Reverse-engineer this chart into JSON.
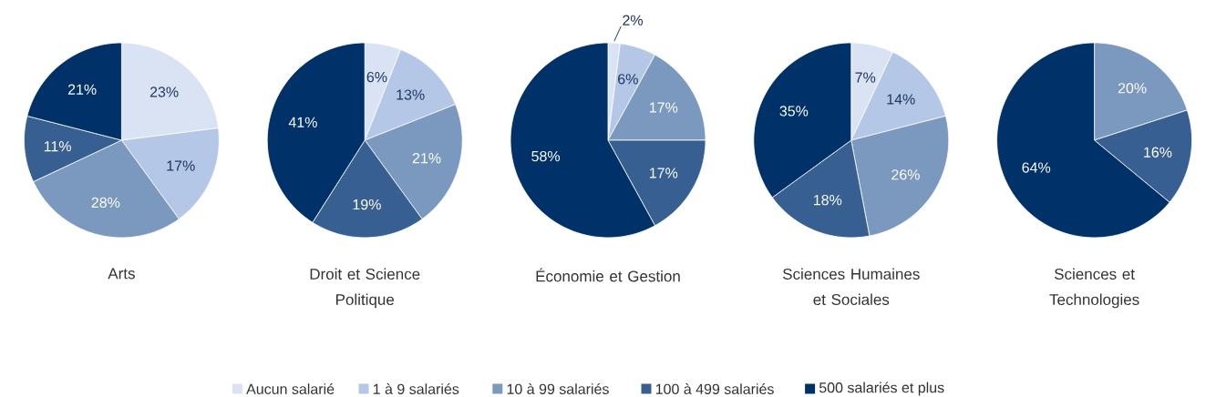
{
  "chart_data": [
    {
      "type": "pie",
      "title": "Arts",
      "categories": [
        "Aucun salarié",
        "1 à 9 salariés",
        "10 à 99 salariés",
        "100 à 499 salariés",
        "500 salariés et plus"
      ],
      "values": [
        23,
        17,
        28,
        11,
        21
      ],
      "value_labels": [
        "23%",
        "17%",
        "28%",
        "11%",
        "21%"
      ],
      "colors": [
        "#dae3f3",
        "#b4c7e7",
        "#7b98bf",
        "#375f92",
        "#003269"
      ],
      "legend": "bottom"
    },
    {
      "type": "pie",
      "title": "Droit et Science Politique",
      "categories": [
        null,
        null,
        null,
        null,
        null
      ],
      "values": [
        6,
        13,
        21,
        19,
        41
      ],
      "value_labels": [
        "6%",
        "13%",
        "21%",
        "19%",
        "41%"
      ],
      "colors": [
        "#dae3f3",
        "#b4c7e7",
        "#7b98bf",
        "#375f92",
        "#003269"
      ]
    },
    {
      "type": "pie",
      "title": "Économie et Gestion",
      "categories": [
        null,
        null,
        null,
        null,
        null
      ],
      "values": [
        2,
        6,
        17,
        17,
        58
      ],
      "value_labels": [
        "2%",
        "6%",
        "17%",
        "17%",
        "58%"
      ],
      "colors": [
        "#dae3f3",
        "#b4c7e7",
        "#7b98bf",
        "#375f92",
        "#003269"
      ]
    },
    {
      "type": "pie",
      "title": "Sciences Humaines et Sociales",
      "categories": [
        null,
        null,
        null,
        null,
        null
      ],
      "values": [
        7,
        14,
        26,
        18,
        35
      ],
      "value_labels": [
        "7%",
        "14%",
        "26%",
        "18%",
        "35%"
      ],
      "colors": [
        "#dae3f3",
        "#b4c7e7",
        "#7b98bf",
        "#375f92",
        "#003269"
      ]
    },
    {
      "type": "pie",
      "title": "Sciences et Technologies",
      "categories": [
        null,
        null,
        null,
        null,
        null
      ],
      "values": [
        null,
        null,
        20,
        16,
        64
      ],
      "value_labels": [
        null,
        null,
        "20%",
        "16%",
        "64%"
      ],
      "colors": [
        "#dae3f3",
        "#b4c7e7",
        "#7b98bf",
        "#375f92",
        "#003269"
      ]
    }
  ]
}
